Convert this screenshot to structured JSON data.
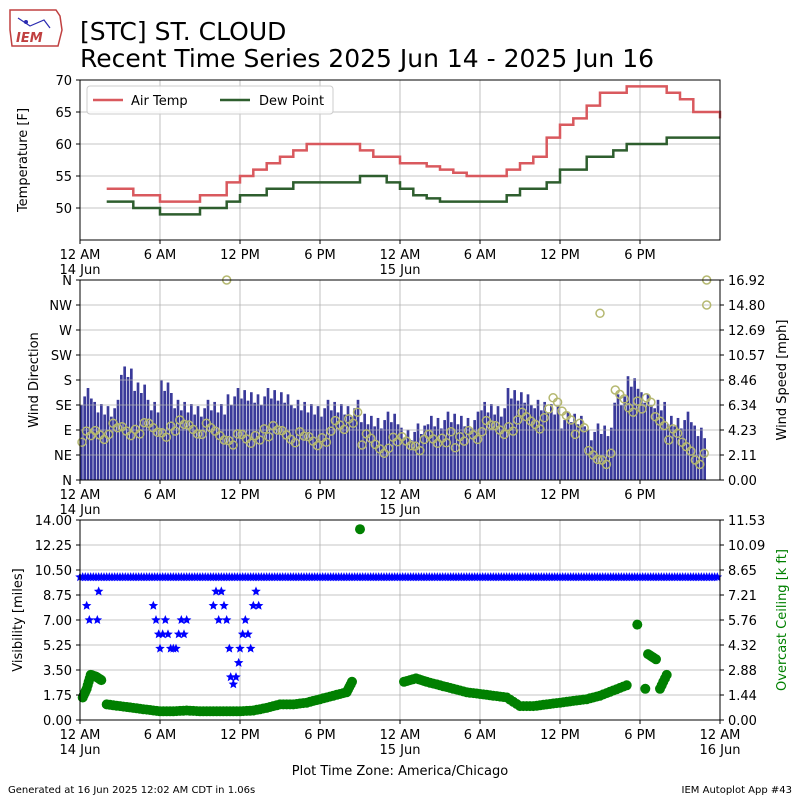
{
  "header": {
    "logo_text": "IEM",
    "title_line1": "[STC] ST. CLOUD",
    "title_line2": "Recent Time Series 2025 Jun 14 - 2025 Jun 16"
  },
  "footer": {
    "generated": "Generated at 16 Jun 2025 12:02 AM CDT in 1.06s",
    "app": "IEM Autoplot App #43",
    "xlabel": "Plot Time Zone: America/Chicago"
  },
  "colors": {
    "air_temp": "#d9595e",
    "dew_point": "#2e5e2e",
    "wind_bars": "#3a3a9a",
    "wind_dir": "#b5b870",
    "visibility": "#0000ff",
    "ceiling": "#008000",
    "grid": "#b0b0b0"
  },
  "chart_data": [
    {
      "type": "line",
      "ylabel": "Temperature [F]",
      "ylim": [
        45,
        70
      ],
      "yticks": [
        "50",
        "55",
        "60",
        "65",
        "70"
      ],
      "legend": "top-left",
      "grid": true,
      "x_hours": [
        2,
        3,
        4,
        5,
        6,
        7,
        8,
        9,
        10,
        11,
        12,
        13,
        14,
        15,
        16,
        17,
        18,
        19,
        20,
        21,
        22,
        23,
        24,
        25,
        26,
        27,
        28,
        29,
        30,
        31,
        32,
        33,
        34,
        35,
        36,
        37,
        38,
        39,
        40,
        41,
        42,
        43,
        44,
        45,
        46,
        47,
        48
      ],
      "series": [
        {
          "name": "Air Temp",
          "values": [
            53,
            53,
            52,
            52,
            51,
            51,
            51,
            52,
            52,
            54,
            55,
            56,
            57,
            58,
            59,
            60,
            60,
            60,
            60,
            59,
            58,
            58,
            57,
            57,
            56.5,
            56,
            55.5,
            55,
            55,
            55,
            56,
            57,
            58,
            61,
            63,
            64,
            66,
            68,
            68,
            69,
            69,
            69,
            68,
            67,
            65,
            65,
            64
          ]
        },
        {
          "name": "Dew Point",
          "values": [
            51,
            51,
            50,
            50,
            49,
            49,
            49,
            50,
            50,
            51,
            52,
            52,
            53,
            53,
            54,
            54,
            54,
            54,
            54,
            55,
            55,
            54,
            53,
            52,
            51.5,
            51,
            51,
            51,
            51,
            51,
            52,
            53,
            53,
            54,
            56,
            56,
            58,
            58,
            59,
            60,
            60,
            60,
            61,
            61,
            61,
            61,
            61
          ]
        }
      ],
      "xticks": [
        "12 AM",
        "6 AM",
        "12 PM",
        "6 PM",
        "12 AM",
        "6 AM",
        "12 PM",
        "6 PM"
      ],
      "xtick_dates": [
        "14 Jun",
        "",
        "",
        "",
        "15 Jun",
        "",
        "",
        ""
      ]
    },
    {
      "type": "bar",
      "ylabel_left": "Wind Direction",
      "ylabel_right": "Wind Speed [mph]",
      "direction_ticks": [
        "N",
        "NE",
        "E",
        "SE",
        "S",
        "SW",
        "W",
        "NW",
        "N"
      ],
      "speed_ticks": [
        "0.00",
        "2.11",
        "4.23",
        "6.34",
        "8.46",
        "10.57",
        "12.69",
        "14.80",
        "16.92"
      ],
      "speed_range": [
        0,
        16.92
      ],
      "grid": true,
      "hourly_speed_mph": [
        7,
        6,
        6,
        9,
        8,
        6,
        8,
        6,
        6,
        6,
        6,
        7,
        7,
        7,
        7,
        7,
        6,
        6,
        6,
        6,
        6,
        5,
        5,
        5,
        4,
        4,
        5,
        5,
        5,
        5,
        6,
        6,
        7,
        7,
        6,
        6,
        5,
        5,
        4,
        4,
        7,
        8,
        7,
        6,
        5,
        5,
        4
      ],
      "hourly_direction_deg": [
        80,
        85,
        90,
        88,
        95,
        90,
        85,
        100,
        95,
        90,
        80,
        75,
        70,
        80,
        90,
        85,
        75,
        70,
        80,
        95,
        110,
        75,
        60,
        65,
        70,
        65,
        70,
        75,
        70,
        85,
        95,
        90,
        100,
        110,
        100,
        140,
        120,
        90,
        45,
        40,
        150,
        130,
        140,
        110,
        80,
        60,
        40
      ],
      "outlier_directions_deg": [
        {
          "hour": 11,
          "deg": 360
        },
        {
          "hour": 39,
          "deg": 300
        },
        {
          "hour": 47,
          "deg": 315
        },
        {
          "hour": 47,
          "deg": 360
        }
      ],
      "xticks": [
        "12 AM",
        "6 AM",
        "12 PM",
        "6 PM",
        "12 AM",
        "6 AM",
        "12 PM",
        "6 PM"
      ],
      "xtick_dates": [
        "14 Jun",
        "",
        "",
        "",
        "15 Jun",
        "",
        "",
        ""
      ]
    },
    {
      "type": "scatter",
      "ylabel_left": "Visibility [miles]",
      "ylabel_right": "Overcast Ceiling [k ft]",
      "visibility_ticks": [
        "0.00",
        "1.75",
        "3.50",
        "5.25",
        "7.00",
        "8.75",
        "10.50",
        "12.25",
        "14.00"
      ],
      "ceiling_ticks": [
        "0.00",
        "1.44",
        "2.88",
        "4.32",
        "5.76",
        "7.21",
        "8.65",
        "10.09",
        "11.53"
      ],
      "visibility_range": [
        0,
        14
      ],
      "ceiling_range": [
        0,
        11.53
      ],
      "grid": true,
      "visibility_miles": [
        {
          "t": 0.5,
          "v": 8
        },
        {
          "t": 0.7,
          "v": 7
        },
        {
          "t": 1.3,
          "v": 7
        },
        {
          "t": 1.4,
          "v": 9
        },
        {
          "t": 5.5,
          "v": 8
        },
        {
          "t": 5.7,
          "v": 7
        },
        {
          "t": 5.9,
          "v": 6
        },
        {
          "t": 6.0,
          "v": 5
        },
        {
          "t": 6.2,
          "v": 6
        },
        {
          "t": 6.4,
          "v": 7
        },
        {
          "t": 6.6,
          "v": 6
        },
        {
          "t": 6.8,
          "v": 5
        },
        {
          "t": 7.0,
          "v": 5
        },
        {
          "t": 7.2,
          "v": 5
        },
        {
          "t": 7.4,
          "v": 6
        },
        {
          "t": 7.6,
          "v": 7
        },
        {
          "t": 7.8,
          "v": 6
        },
        {
          "t": 8.0,
          "v": 7
        },
        {
          "t": 10.0,
          "v": 8
        },
        {
          "t": 10.2,
          "v": 9
        },
        {
          "t": 10.4,
          "v": 7
        },
        {
          "t": 10.6,
          "v": 9
        },
        {
          "t": 10.8,
          "v": 8
        },
        {
          "t": 11.0,
          "v": 7
        },
        {
          "t": 11.2,
          "v": 5
        },
        {
          "t": 11.3,
          "v": 3
        },
        {
          "t": 11.5,
          "v": 2.5
        },
        {
          "t": 11.7,
          "v": 3
        },
        {
          "t": 11.9,
          "v": 4
        },
        {
          "t": 12.0,
          "v": 5
        },
        {
          "t": 12.2,
          "v": 6
        },
        {
          "t": 12.4,
          "v": 7
        },
        {
          "t": 12.6,
          "v": 6
        },
        {
          "t": 12.8,
          "v": 5
        },
        {
          "t": 13.0,
          "v": 8
        },
        {
          "t": 13.2,
          "v": 9
        },
        {
          "t": 13.4,
          "v": 8
        }
      ],
      "visibility_baseline_miles": 10,
      "ceiling_kft": [
        {
          "t": 0.2,
          "v": 1.3
        },
        {
          "t": 0.5,
          "v": 1.8
        },
        {
          "t": 0.8,
          "v": 2.6
        },
        {
          "t": 1.2,
          "v": 2.5
        },
        {
          "t": 1.6,
          "v": 2.3
        },
        {
          "t": 2.0,
          "v": 0.9
        },
        {
          "t": 3.0,
          "v": 0.8
        },
        {
          "t": 4.0,
          "v": 0.7
        },
        {
          "t": 5.0,
          "v": 0.6
        },
        {
          "t": 6.0,
          "v": 0.5
        },
        {
          "t": 7.0,
          "v": 0.5
        },
        {
          "t": 8.0,
          "v": 0.55
        },
        {
          "t": 9.0,
          "v": 0.5
        },
        {
          "t": 10.0,
          "v": 0.5
        },
        {
          "t": 11.0,
          "v": 0.5
        },
        {
          "t": 12.0,
          "v": 0.5
        },
        {
          "t": 13.0,
          "v": 0.55
        },
        {
          "t": 14.0,
          "v": 0.7
        },
        {
          "t": 15.0,
          "v": 0.9
        },
        {
          "t": 16.0,
          "v": 0.9
        },
        {
          "t": 17.0,
          "v": 1.0
        },
        {
          "t": 18.0,
          "v": 1.2
        },
        {
          "t": 19.0,
          "v": 1.4
        },
        {
          "t": 20.0,
          "v": 1.6
        },
        {
          "t": 20.4,
          "v": 2.2
        },
        {
          "t": 21.0,
          "v": 11.0
        },
        {
          "t": 24.3,
          "v": 2.2
        },
        {
          "t": 25.2,
          "v": 2.4
        },
        {
          "t": 26.0,
          "v": 2.2
        },
        {
          "t": 27.0,
          "v": 2.0
        },
        {
          "t": 28.0,
          "v": 1.8
        },
        {
          "t": 29.0,
          "v": 1.6
        },
        {
          "t": 30.0,
          "v": 1.5
        },
        {
          "t": 31.0,
          "v": 1.4
        },
        {
          "t": 32.0,
          "v": 1.3
        },
        {
          "t": 33.0,
          "v": 0.8
        },
        {
          "t": 34.0,
          "v": 0.8
        },
        {
          "t": 35.0,
          "v": 0.9
        },
        {
          "t": 36.0,
          "v": 1.0
        },
        {
          "t": 37.0,
          "v": 1.1
        },
        {
          "t": 38.0,
          "v": 1.2
        },
        {
          "t": 39.0,
          "v": 1.4
        },
        {
          "t": 40.0,
          "v": 1.7
        },
        {
          "t": 41.0,
          "v": 2.0
        },
        {
          "t": 41.8,
          "v": 5.5
        },
        {
          "t": 42.4,
          "v": 1.8
        },
        {
          "t": 42.6,
          "v": 3.8
        },
        {
          "t": 43.2,
          "v": 3.5
        },
        {
          "t": 43.5,
          "v": 1.8
        },
        {
          "t": 44.0,
          "v": 2.6
        }
      ],
      "xticks": [
        "12 AM",
        "6 AM",
        "12 PM",
        "6 PM",
        "12 AM",
        "6 AM",
        "12 PM",
        "6 PM",
        "12 AM"
      ],
      "xtick_dates": [
        "14 Jun",
        "",
        "",
        "",
        "15 Jun",
        "",
        "",
        "",
        "16 Jun"
      ]
    }
  ]
}
